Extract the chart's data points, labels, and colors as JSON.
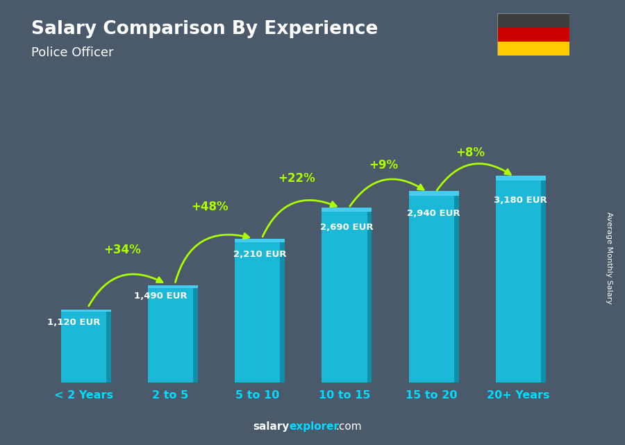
{
  "title": "Salary Comparison By Experience",
  "subtitle": "Police Officer",
  "categories": [
    "< 2 Years",
    "2 to 5",
    "5 to 10",
    "10 to 15",
    "15 to 20",
    "20+ Years"
  ],
  "values": [
    1120,
    1490,
    2210,
    2690,
    2940,
    3180
  ],
  "labels": [
    "1,120 EUR",
    "1,490 EUR",
    "2,210 EUR",
    "2,690 EUR",
    "2,940 EUR",
    "3,180 EUR"
  ],
  "pct_labels": [
    "+34%",
    "+48%",
    "+22%",
    "+9%",
    "+8%"
  ],
  "bar_color_face": "#1BB8D8",
  "bar_color_right": "#0E8FAA",
  "bar_color_top": "#45CCEE",
  "bg_color": "#4a5a6a",
  "title_color": "#FFFFFF",
  "subtitle_color": "#FFFFFF",
  "label_color": "#FFFFFF",
  "pct_color": "#AAFF00",
  "tick_color": "#00DDFF",
  "watermark_color1": "#FFFFFF",
  "watermark_color2": "#00DDFF",
  "watermark": "salaryexplorer.com",
  "ylabel_text": "Average Monthly Salary",
  "ylim": [
    0,
    4200
  ],
  "flag_colors": [
    "#3D3D3D",
    "#CC0000",
    "#FFCC00"
  ]
}
